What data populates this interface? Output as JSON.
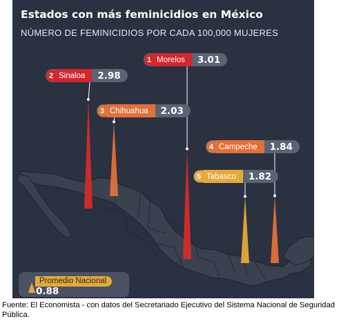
{
  "chart_data": {
    "type": "bar",
    "title": "Estados con más feminicidios en México",
    "subtitle": "NÚMERO DE FEMINICIDIOS POR CADA 100,000 MUJERES",
    "categories": [
      "Morelos",
      "Sinaloa",
      "Chihuahua",
      "Campeche",
      "Tabasco"
    ],
    "ranks": [
      "1",
      "2",
      "3",
      "4",
      "5"
    ],
    "values": [
      3.01,
      2.98,
      2.03,
      1.84,
      1.82
    ],
    "value_labels": [
      "3.01",
      "2.98",
      "2.03",
      "1.84",
      "1.82"
    ],
    "rank_colors": [
      "#d3262e",
      "#d3262e",
      "#e2703a",
      "#e2703a",
      "#e6a93a"
    ],
    "spike_colors": [
      "#d52b2b",
      "#d52b2b",
      "#e2703a",
      "#e2703a",
      "#e6a93a"
    ],
    "average": {
      "label": "Promedio Nacional",
      "value": 0.88,
      "value_label": "0.88",
      "color": "#e6a93a"
    }
  },
  "footnote": "Fuente: El Economista - con datos del Secretariado Ejecutivo del Sistema Nacional de Seguridad Pública."
}
